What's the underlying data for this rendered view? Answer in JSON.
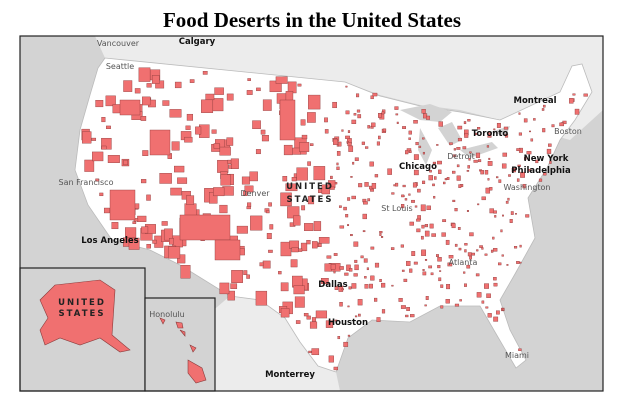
{
  "title": "Food Deserts in the United States",
  "labels": {
    "vancouver": "Vancouver",
    "calgary": "Calgary",
    "seattle": "Seattle",
    "san_francisco": "San Francisco",
    "los_angeles": "Los Angeles",
    "denver": "Denver",
    "united": "UNITED",
    "states": "STATES",
    "chicago": "Chicago",
    "detroit": "Detroit",
    "toronto": "Toronto",
    "montreal": "Montreal",
    "boston": "Boston",
    "new_york": "New York",
    "philadelphia": "Philadelphia",
    "washington": "Washington",
    "st_louis": "St Louis",
    "atlanta": "Atlanta",
    "dallas": "Dallas",
    "houston": "Houston",
    "monterrey": "Monterrey",
    "miami": "Miami",
    "honolulu": "Honolulu",
    "alaska_united": "UNITED",
    "alaska_states": "STATES"
  }
}
